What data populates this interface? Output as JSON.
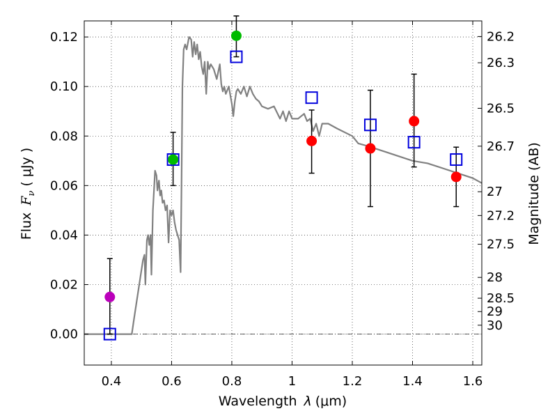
{
  "chart_data": {
    "type": "scatter",
    "title": "",
    "xlabel_text": "Wavelength",
    "xlabel_symbol": "λ",
    "xlabel_unit": "(μm)",
    "ylabel_text": "Flux",
    "ylabel_symbol": "F",
    "ylabel_sub": "ν",
    "ylabel_unit": "( μJy )",
    "y2label": "Magnitude (AB)",
    "xlim": [
      0.31,
      1.63
    ],
    "ylim": [
      -0.0125,
      0.1265
    ],
    "grid": true,
    "xticks": [
      0.4,
      0.6,
      0.8,
      1.0,
      1.2,
      1.4,
      1.6
    ],
    "xtick_labels": [
      "0.4",
      "0.6",
      "0.8",
      "1",
      "1.2",
      "1.4",
      "1.6"
    ],
    "yticks": [
      0.0,
      0.02,
      0.04,
      0.06,
      0.08,
      0.1,
      0.12
    ],
    "ytick_labels": [
      "0.00",
      "0.02",
      "0.04",
      "0.06",
      "0.08",
      "0.10",
      "0.12"
    ],
    "mag_ticks": [
      {
        "label": "26.2",
        "flux": 0.1202
      },
      {
        "label": "26.3",
        "flux": 0.1096
      },
      {
        "label": "26.5",
        "flux": 0.0912
      },
      {
        "label": "26.7",
        "flux": 0.0759
      },
      {
        "label": "27",
        "flux": 0.0575
      },
      {
        "label": "27.2",
        "flux": 0.0479
      },
      {
        "label": "27.5",
        "flux": 0.0363
      },
      {
        "label": "28",
        "flux": 0.0229
      },
      {
        "label": "28.5",
        "flux": 0.0145
      },
      {
        "label": "29",
        "flux": 0.0091
      },
      {
        "label": "30",
        "flux": 0.0036
      }
    ],
    "zero_line": true,
    "model_sed": {
      "name": "model SED",
      "color": "#808080",
      "x": [
        0.31,
        0.468,
        0.475,
        0.49,
        0.505,
        0.51,
        0.513,
        0.518,
        0.522,
        0.526,
        0.53,
        0.533,
        0.538,
        0.545,
        0.55,
        0.553,
        0.558,
        0.562,
        0.566,
        0.57,
        0.575,
        0.58,
        0.585,
        0.59,
        0.595,
        0.6,
        0.605,
        0.61,
        0.615,
        0.62,
        0.625,
        0.63,
        0.633,
        0.636,
        0.64,
        0.645,
        0.65,
        0.658,
        0.665,
        0.67,
        0.675,
        0.68,
        0.685,
        0.69,
        0.695,
        0.7,
        0.705,
        0.71,
        0.715,
        0.72,
        0.725,
        0.73,
        0.74,
        0.75,
        0.76,
        0.765,
        0.77,
        0.775,
        0.78,
        0.79,
        0.8,
        0.805,
        0.81,
        0.815,
        0.82,
        0.83,
        0.84,
        0.85,
        0.86,
        0.87,
        0.88,
        0.89,
        0.9,
        0.92,
        0.94,
        0.96,
        0.97,
        0.98,
        0.99,
        1.0,
        1.02,
        1.04,
        1.05,
        1.06,
        1.07,
        1.08,
        1.09,
        1.1,
        1.12,
        1.15,
        1.2,
        1.22,
        1.25,
        1.3,
        1.35,
        1.4,
        1.45,
        1.5,
        1.55,
        1.6,
        1.63
      ],
      "y": [
        0.0,
        0.0,
        0.006,
        0.018,
        0.03,
        0.032,
        0.02,
        0.038,
        0.04,
        0.036,
        0.04,
        0.024,
        0.05,
        0.066,
        0.064,
        0.058,
        0.062,
        0.056,
        0.058,
        0.053,
        0.054,
        0.05,
        0.052,
        0.037,
        0.05,
        0.048,
        0.05,
        0.045,
        0.042,
        0.04,
        0.038,
        0.025,
        0.06,
        0.1,
        0.115,
        0.117,
        0.115,
        0.12,
        0.119,
        0.112,
        0.118,
        0.113,
        0.117,
        0.111,
        0.114,
        0.108,
        0.105,
        0.11,
        0.097,
        0.11,
        0.107,
        0.109,
        0.107,
        0.103,
        0.109,
        0.101,
        0.098,
        0.1,
        0.097,
        0.1,
        0.093,
        0.088,
        0.094,
        0.098,
        0.099,
        0.097,
        0.1,
        0.096,
        0.1,
        0.097,
        0.095,
        0.094,
        0.092,
        0.091,
        0.092,
        0.087,
        0.09,
        0.086,
        0.09,
        0.087,
        0.087,
        0.089,
        0.086,
        0.087,
        0.082,
        0.085,
        0.08,
        0.085,
        0.085,
        0.083,
        0.08,
        0.077,
        0.076,
        0.074,
        0.072,
        0.07,
        0.069,
        0.067,
        0.065,
        0.063,
        0.061
      ]
    },
    "series": [
      {
        "name": "model-photometry",
        "marker": "open-square",
        "color": "#0000dd",
        "points": [
          {
            "x": 0.395,
            "y": 0.0
          },
          {
            "x": 0.605,
            "y": 0.0705
          },
          {
            "x": 0.815,
            "y": 0.112
          },
          {
            "x": 1.065,
            "y": 0.0955
          },
          {
            "x": 1.26,
            "y": 0.0845
          },
          {
            "x": 1.405,
            "y": 0.0775
          },
          {
            "x": 1.545,
            "y": 0.0705
          }
        ]
      },
      {
        "name": "observed-photometry",
        "marker": "filled-circle",
        "points": [
          {
            "x": 0.395,
            "y": 0.015,
            "err_lo": 0.015,
            "err_hi": 0.0155,
            "color": "#bb00bb"
          },
          {
            "x": 0.605,
            "y": 0.0705,
            "err_lo": 0.0105,
            "err_hi": 0.011,
            "color": "#00bb00"
          },
          {
            "x": 0.815,
            "y": 0.1205,
            "err_lo": 0.0085,
            "err_hi": 0.008,
            "color": "#00bb00"
          },
          {
            "x": 1.065,
            "y": 0.078,
            "err_lo": 0.013,
            "err_hi": 0.0125,
            "color": "#ff0000"
          },
          {
            "x": 1.26,
            "y": 0.075,
            "err_lo": 0.0235,
            "err_hi": 0.0235,
            "color": "#ff0000"
          },
          {
            "x": 1.405,
            "y": 0.086,
            "err_lo": 0.0185,
            "err_hi": 0.019,
            "color": "#ff0000"
          },
          {
            "x": 1.545,
            "y": 0.0635,
            "err_lo": 0.012,
            "err_hi": 0.012,
            "color": "#ff0000"
          }
        ]
      }
    ]
  }
}
